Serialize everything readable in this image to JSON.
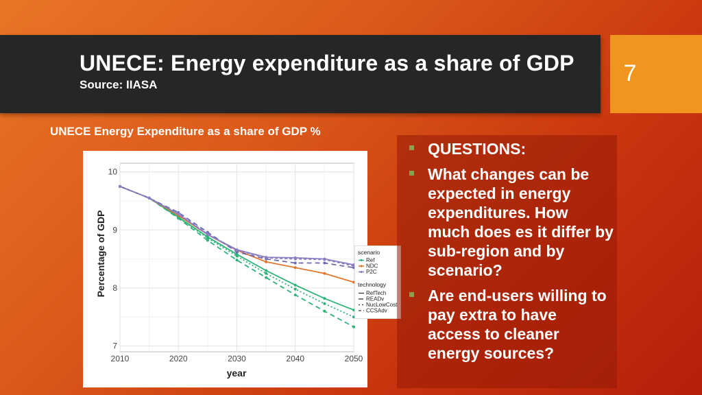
{
  "slide": {
    "title": "UNECE: Energy expenditure as a share of GDP",
    "subtitle": "Source: IIASA",
    "page_number": "7",
    "colors": {
      "title_bar": "#262626",
      "page_box": "#f0961f",
      "panel": "#8e1a06"
    }
  },
  "chart_heading": "UNECE Energy Expenditure as a share of GDP %",
  "questions": [
    "QUESTIONS:",
    "What changes can be expected in energy expenditures. How much does es it differ by sub-region and by scenario?",
    "Are end-users willing to pay extra to have access to cleaner energy sources?"
  ],
  "chart_data": {
    "type": "line",
    "xlabel": "year",
    "ylabel": "Percentage of GDP",
    "xlim": [
      2010,
      2050
    ],
    "ylim": [
      6.9,
      10.15
    ],
    "xticks": [
      2010,
      2020,
      2030,
      2040,
      2050
    ],
    "yticks": [
      7,
      8,
      9,
      10
    ],
    "grid": true,
    "legend": {
      "scenario_title": "scenario",
      "scenarios": [
        {
          "name": "Ref",
          "color": "#2db37a"
        },
        {
          "name": "NDC",
          "color": "#e2762c"
        },
        {
          "name": "P2C",
          "color": "#8b7fc0"
        }
      ],
      "technology_title": "technology",
      "technologies": [
        {
          "name": "RefTech",
          "dash": ""
        },
        {
          "name": "READv",
          "dash": "7,5"
        },
        {
          "name": "NucLowCost",
          "dash": "2,3"
        },
        {
          "name": "CCSAdv",
          "dash": "4,3"
        }
      ]
    },
    "x": [
      2010,
      2015,
      2020,
      2025,
      2030,
      2035,
      2040,
      2045,
      2050
    ],
    "series": [
      {
        "name": "Ref",
        "scenario": "Ref",
        "technology": "RefTech",
        "color": "#2db37a",
        "dash": "",
        "values": [
          9.75,
          9.55,
          9.22,
          8.88,
          8.58,
          8.3,
          8.05,
          7.82,
          7.62
        ]
      },
      {
        "name": "Ref",
        "scenario": "Ref",
        "technology": "READv",
        "color": "#2db37a",
        "dash": "7,5",
        "values": [
          9.75,
          9.55,
          9.2,
          8.82,
          8.48,
          8.18,
          7.88,
          7.6,
          7.33
        ]
      },
      {
        "name": "Ref",
        "scenario": "Ref",
        "technology": "NucLowCost",
        "color": "#2db37a",
        "dash": "2,3",
        "values": [
          9.75,
          9.55,
          9.21,
          8.86,
          8.55,
          8.25,
          7.98,
          7.73,
          7.5
        ]
      },
      {
        "name": "NDC",
        "scenario": "NDC",
        "technology": "RefTech",
        "color": "#e2762c",
        "dash": "",
        "values": [
          9.75,
          9.55,
          9.25,
          8.92,
          8.65,
          8.45,
          8.35,
          8.25,
          8.1
        ]
      },
      {
        "name": "P2C",
        "scenario": "P2C",
        "technology": "RefTech",
        "color": "#8b7fc0",
        "dash": "",
        "values": [
          9.75,
          9.55,
          9.27,
          8.92,
          8.66,
          8.53,
          8.52,
          8.5,
          8.4
        ]
      },
      {
        "name": "P2C",
        "scenario": "P2C",
        "technology": "READv",
        "color": "#6a6ab0",
        "dash": "7,5",
        "values": [
          9.75,
          9.55,
          9.3,
          8.96,
          8.62,
          8.5,
          8.43,
          8.43,
          8.35
        ]
      },
      {
        "name": "P2C",
        "scenario": "P2C",
        "technology": "CCSAdv",
        "color": "#8b7fc0",
        "dash": "4,3",
        "values": [
          9.75,
          9.55,
          9.28,
          8.93,
          8.65,
          8.52,
          8.5,
          8.49,
          8.38
        ]
      }
    ]
  }
}
